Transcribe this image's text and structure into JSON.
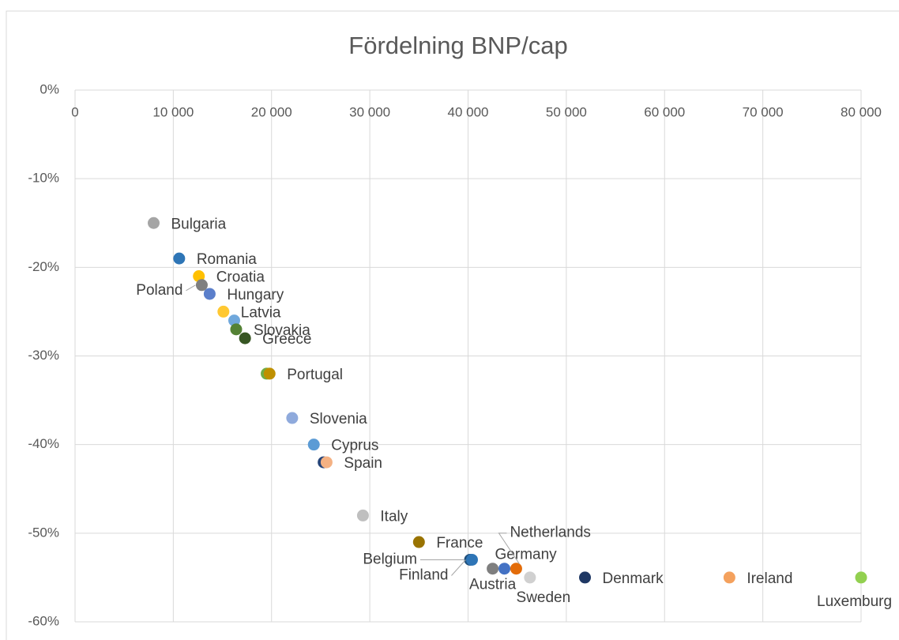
{
  "chart_data": {
    "type": "scatter",
    "title": "Fördelning BNP/cap",
    "x": [
      8000,
      10600,
      12600,
      12900,
      13700,
      15100,
      16200,
      16400,
      17300,
      19500,
      19800,
      22100,
      24300,
      25300,
      25600,
      29300,
      35000,
      40200,
      40400,
      42500,
      43700,
      44900,
      46300,
      51900,
      66600,
      80000
    ],
    "values": [
      -15,
      -19,
      -21,
      -22,
      -23,
      -25,
      -26,
      -27,
      -28,
      -32,
      -32,
      -37,
      -40,
      -42,
      -42,
      -48,
      -51,
      -53,
      -53,
      -54,
      -54,
      -54,
      -55,
      -55,
      -55,
      -55
    ],
    "labels": [
      "Bulgaria",
      "Romania",
      "Croatia",
      "Poland",
      "Hungary",
      "Latvia",
      null,
      "Slovakia",
      "Greece",
      null,
      "Portugal",
      "Slovenia",
      "Cyprus",
      null,
      "Spain",
      "Italy",
      "France",
      "Belgium",
      "Finland",
      "Austria",
      "Germany",
      "Netherlands",
      "Sweden",
      "Denmark",
      "Ireland",
      "Luxemburg"
    ],
    "colors": [
      "#a5a5a5",
      "#2e75b6",
      "#ffc000",
      "#7f7f7f",
      "#5b7fcb",
      "#ffc832",
      "#70a8dc",
      "#548235",
      "#375623",
      "#70ad47",
      "#bf9000",
      "#8faadc",
      "#5b9bd5",
      "#264478",
      "#f4b183",
      "#bfbfbf",
      "#997300",
      "#1f4e79",
      "#2e75b6",
      "#7f7f7f",
      "#4472c4",
      "#e36c09",
      "#d0d0d0",
      "#1f3864",
      "#f4a15d",
      "#92d050"
    ],
    "xlim": [
      0,
      80000
    ],
    "xticks": [
      0,
      {
        "value": 10000,
        "label": "10 000"
      },
      {
        "value": 20000,
        "label": "20 000"
      },
      {
        "value": 30000,
        "label": "30 000"
      },
      {
        "value": 40000,
        "label": "40 000"
      },
      {
        "value": 50000,
        "label": "50 000"
      },
      {
        "value": 60000,
        "label": "60 000"
      },
      {
        "value": 70000,
        "label": "70 000"
      },
      {
        "value": 80000,
        "label": "80 000"
      }
    ],
    "ylim": [
      -60,
      0
    ],
    "yticks": [
      {
        "value": 0,
        "label": "0%"
      },
      {
        "value": -10,
        "label": "-10%"
      },
      {
        "value": -20,
        "label": "-20%"
      },
      {
        "value": -30,
        "label": "-30%"
      },
      {
        "value": -40,
        "label": "-40%"
      },
      {
        "value": -50,
        "label": "-50%"
      },
      {
        "value": -60,
        "label": "-60%"
      }
    ],
    "grid": true
  }
}
